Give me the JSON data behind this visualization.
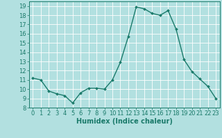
{
  "x": [
    0,
    1,
    2,
    3,
    4,
    5,
    6,
    7,
    8,
    9,
    10,
    11,
    12,
    13,
    14,
    15,
    16,
    17,
    18,
    19,
    20,
    21,
    22,
    23
  ],
  "y": [
    11.2,
    11.0,
    9.8,
    9.5,
    9.3,
    8.5,
    9.6,
    10.1,
    10.1,
    10.0,
    11.0,
    12.9,
    15.7,
    18.9,
    18.7,
    18.2,
    18.0,
    18.5,
    16.5,
    13.2,
    11.9,
    11.1,
    10.3,
    9.0
  ],
  "line_color": "#1a7a6a",
  "marker": "D",
  "markersize": 2.0,
  "linewidth": 1.0,
  "xlabel": "Humidex (Indice chaleur)",
  "xlabel_fontsize": 7,
  "tick_fontsize": 6,
  "xlim": [
    -0.5,
    23.5
  ],
  "ylim": [
    8,
    19.5
  ],
  "yticks": [
    8,
    9,
    10,
    11,
    12,
    13,
    14,
    15,
    16,
    17,
    18,
    19
  ],
  "xticks": [
    0,
    1,
    2,
    3,
    4,
    5,
    6,
    7,
    8,
    9,
    10,
    11,
    12,
    13,
    14,
    15,
    16,
    17,
    18,
    19,
    20,
    21,
    22,
    23
  ],
  "bg_color": "#b2e0e0",
  "grid_color": "#ffffff",
  "axes_color": "#1a7a6a"
}
